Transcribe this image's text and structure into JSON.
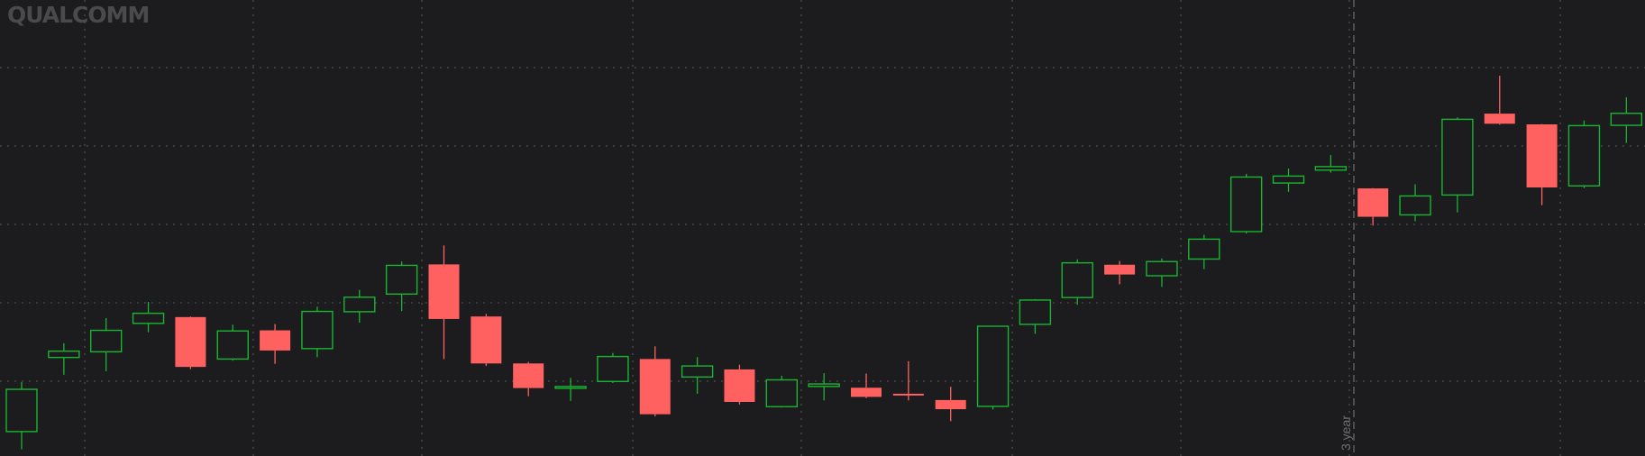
{
  "brand": {
    "watermark": "QUALCOMM"
  },
  "colors": {
    "background": "#1c1c1e",
    "grid": "#5a5a5e",
    "up": "#19b532",
    "down": "#ff6161",
    "watermark": "#4a4a4e",
    "year_marker": "#6e6e72"
  },
  "chart_data": {
    "type": "candlestick",
    "title": "",
    "xlabel": "",
    "ylabel": "",
    "grid": true,
    "ylim": [
      0,
      100
    ],
    "annotations": [
      {
        "type": "vertical-dashed-line",
        "at_index": 32,
        "label": "3 year"
      }
    ],
    "candles": [
      {
        "open": 4.6,
        "high": 20.3,
        "low": -1.0,
        "close": 18.0
      },
      {
        "open": 28.1,
        "high": 32.6,
        "low": 22.6,
        "close": 30.1
      },
      {
        "open": 29.9,
        "high": 40.6,
        "low": 23.7,
        "close": 36.7
      },
      {
        "open": 38.9,
        "high": 45.7,
        "low": 36.1,
        "close": 42.1
      },
      {
        "open": 40.9,
        "high": 41.1,
        "low": 24.4,
        "close": 25.1
      },
      {
        "open": 27.6,
        "high": 38.5,
        "low": 27.1,
        "close": 36.5
      },
      {
        "open": 36.7,
        "high": 38.7,
        "low": 26.1,
        "close": 30.3
      },
      {
        "open": 30.9,
        "high": 44.2,
        "low": 28.2,
        "close": 42.7
      },
      {
        "open": 42.6,
        "high": 49.5,
        "low": 39.1,
        "close": 47.2
      },
      {
        "open": 48.2,
        "high": 58.5,
        "low": 42.8,
        "close": 57.3
      },
      {
        "open": 57.6,
        "high": 63.6,
        "low": 27.6,
        "close": 40.3
      },
      {
        "open": 41.1,
        "high": 41.9,
        "low": 25.4,
        "close": 26.2
      },
      {
        "open": 26.2,
        "high": 26.7,
        "low": 15.8,
        "close": 18.4
      },
      {
        "open": 18.6,
        "high": 21.6,
        "low": 14.3,
        "close": 18.9
      },
      {
        "open": 20.5,
        "high": 29.5,
        "low": 20.0,
        "close": 28.4
      },
      {
        "open": 27.6,
        "high": 31.6,
        "low": 9.4,
        "close": 10.1
      },
      {
        "open": 21.9,
        "high": 28.2,
        "low": 16.6,
        "close": 25.4
      },
      {
        "open": 24.3,
        "high": 25.8,
        "low": 13.2,
        "close": 14.0
      },
      {
        "open": 12.5,
        "high": 22.3,
        "low": 12.2,
        "close": 21.0
      },
      {
        "open": 18.9,
        "high": 23.1,
        "low": 14.5,
        "close": 19.7
      },
      {
        "open": 18.5,
        "high": 23.0,
        "low": 15.2,
        "close": 15.6
      },
      {
        "open": 16.6,
        "high": 26.9,
        "low": 14.5,
        "close": 16.1
      },
      {
        "open": 14.6,
        "high": 18.8,
        "low": 7.9,
        "close": 11.7
      },
      {
        "open": 12.6,
        "high": 38.0,
        "low": 11.6,
        "close": 38.0
      },
      {
        "open": 38.6,
        "high": 46.6,
        "low": 35.6,
        "close": 46.3
      },
      {
        "open": 47.1,
        "high": 59.2,
        "low": 44.8,
        "close": 58.1
      },
      {
        "open": 57.5,
        "high": 58.7,
        "low": 51.3,
        "close": 54.4
      },
      {
        "open": 54.0,
        "high": 59.5,
        "low": 50.5,
        "close": 58.5
      },
      {
        "open": 59.3,
        "high": 67.0,
        "low": 56.1,
        "close": 65.6
      },
      {
        "open": 68.0,
        "high": 86.3,
        "low": 67.4,
        "close": 85.3
      },
      {
        "open": 83.4,
        "high": 88.0,
        "low": 80.6,
        "close": 85.6
      },
      {
        "open": 87.5,
        "high": 92.3,
        "low": 86.7,
        "close": 88.6
      },
      {
        "open": 81.7,
        "high": 81.8,
        "low": 69.9,
        "close": 72.7
      },
      {
        "open": 73.3,
        "high": 83.0,
        "low": 71.3,
        "close": 79.3
      },
      {
        "open": 79.6,
        "high": 104.2,
        "low": 74.1,
        "close": 103.6
      },
      {
        "open": 105.4,
        "high": 117.4,
        "low": 101.9,
        "close": 102.2
      },
      {
        "open": 102.0,
        "high": 102.1,
        "low": 76.4,
        "close": 82.0
      },
      {
        "open": 82.5,
        "high": 103.2,
        "low": 81.8,
        "close": 101.6
      },
      {
        "open": 101.7,
        "high": 110.6,
        "low": 96.1,
        "close": 105.5
      }
    ]
  }
}
